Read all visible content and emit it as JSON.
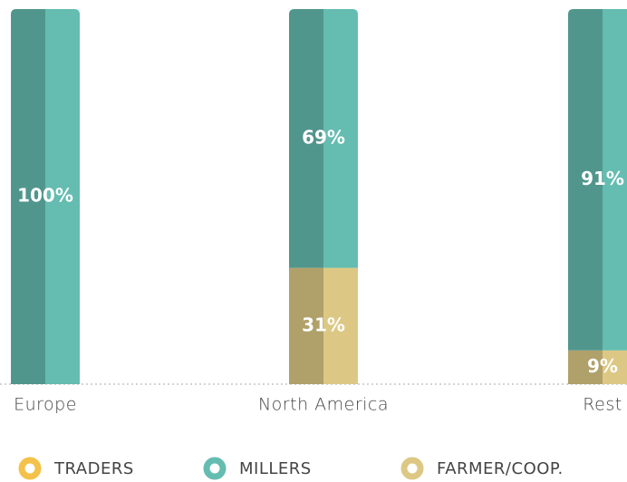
{
  "chart_data": {
    "type": "stacked-bar",
    "categories": [
      "Europe",
      "North America",
      "Rest"
    ],
    "ylim": [
      0,
      100
    ],
    "series": [
      {
        "name": "TRADERS",
        "color": "#f4c24a",
        "values": [
          0,
          0,
          0
        ]
      },
      {
        "name": "FARMER/COOP.",
        "color": "#dcc884",
        "values": [
          0,
          31,
          9
        ],
        "value_labels": [
          null,
          "31%",
          "9%"
        ]
      },
      {
        "name": "MILLERS",
        "color": "#65bcb0",
        "values": [
          100,
          69,
          91
        ],
        "value_labels": [
          "100%",
          "69%",
          "91%"
        ]
      }
    ]
  }
}
